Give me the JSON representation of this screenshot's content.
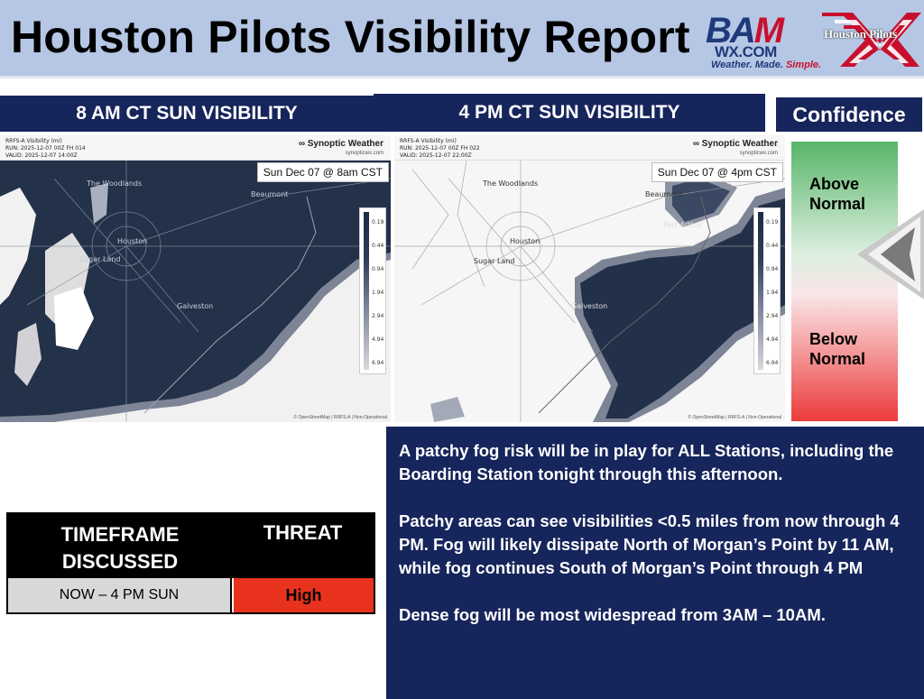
{
  "header": {
    "title": "Houston Pilots Visibility Report",
    "bam_logo": {
      "wordmark_b": "BA",
      "wordmark_m": "M",
      "domain": "WX.COM",
      "tagline_start": "Weather. Made. ",
      "tagline_end": "Simple."
    },
    "hp_logo_text": "Houston Pilots"
  },
  "banners": {
    "left": "8 AM CT SUN VISIBILITY",
    "right": "4 PM CT SUN VISIBILITY",
    "confidence": "Confidence"
  },
  "maps": [
    {
      "meta_line1": "RRFS-A Visibility (mi)",
      "meta_line2": "RUN: 2025-12-07 00Z FH 014",
      "meta_line3": "VALID: 2025-12-07 14:00Z",
      "brand": "∞ Synoptic Weather",
      "brand_sub": "synopticwx.com",
      "date_label": "Sun Dec 07 @ 8am CST",
      "cities": {
        "woodlands": "The Woodlands",
        "beaumont": "Beaumont",
        "houston": "Houston",
        "sugarland": "Sugar Land",
        "galveston": "Galveston"
      },
      "credit": "© OpenStreetMap | RRFS-A | Non-Operational"
    },
    {
      "meta_line1": "RRFS-A Visibility (mi)",
      "meta_line2": "RUN: 2025-12-07 00Z FH 022",
      "meta_line3": "VALID: 2025-12-07 22:00Z",
      "brand": "∞ Synoptic Weather",
      "brand_sub": "synopticwx.com",
      "date_label": "Sun Dec 07 @ 4pm CST",
      "cities": {
        "woodlands": "The Woodlands",
        "beaumont": "Beaumont",
        "houston": "Houston",
        "sugarland": "Sugar Land",
        "galveston": "Galveston",
        "portarthur": "Port Arthur"
      },
      "credit": "© OpenStreetMap | RRFS-A | Non-Operational"
    }
  ],
  "legend_values": [
    "0.19",
    "0.44",
    "0.94",
    "1.94",
    "2.94",
    "4.94",
    "6.94"
  ],
  "confidence": {
    "above": "Above Normal",
    "below": "Below Normal",
    "level": "Above Normal"
  },
  "threat_table": {
    "col_timeframe": "TIMEFRAME DISCUSSED",
    "col_threat": "THREAT",
    "timeframe": "NOW – 4 PM SUN",
    "threat": "High",
    "threat_color": "#e8321e"
  },
  "discussion": {
    "p1": "A patchy fog risk will be in play for ALL Stations, including the Boarding Station tonight through this afternoon.",
    "p2": "Patchy areas can see visibilities <0.5 miles from now through 4 PM. Fog will likely dissipate North of Morgan’s Point by 11 AM, while fog continues South of Morgan’s Point through 4 PM",
    "p3": "Dense fog will be most widespread from 3AM – 10AM."
  },
  "colors": {
    "banner_navy": "#16255b",
    "header_blue": "#b5c7e4",
    "fog_dense": "#1c2b44",
    "clear": "#f4f4f4"
  }
}
